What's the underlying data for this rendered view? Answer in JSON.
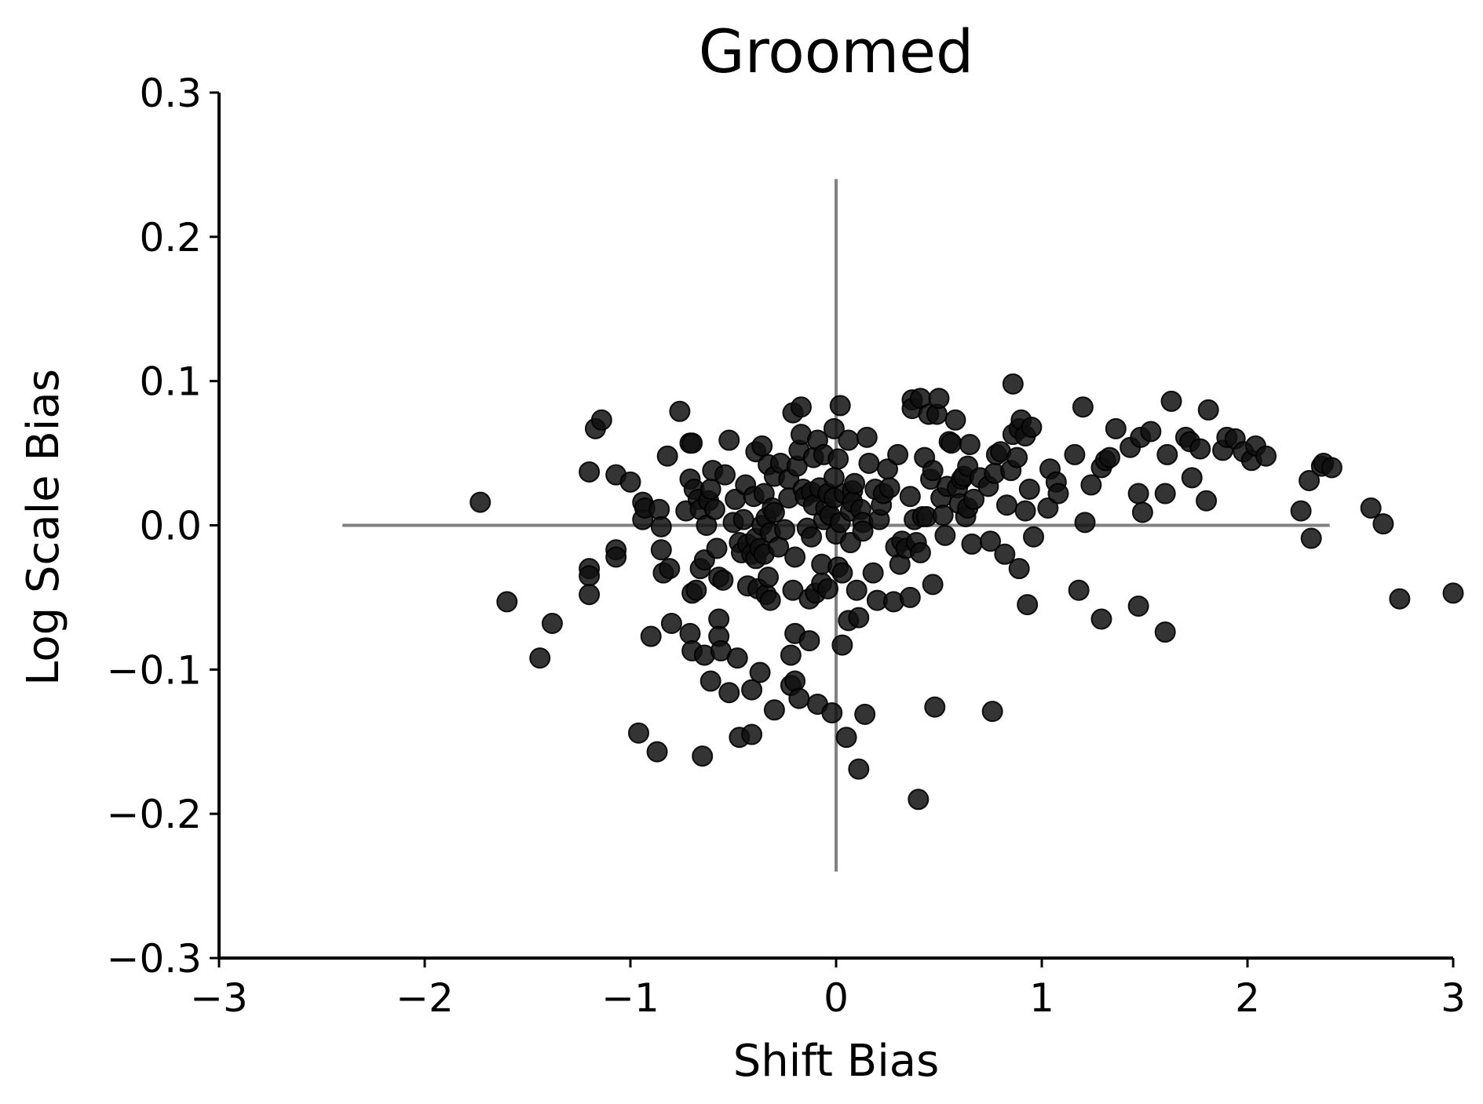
{
  "chart_data": {
    "type": "scatter",
    "title": "Groomed",
    "xlabel": "Shift Bias",
    "ylabel": "Log Scale Bias",
    "xlim": [
      -3,
      3
    ],
    "ylim": [
      -0.3,
      0.3
    ],
    "xticks": [
      -3,
      -2,
      -1,
      0,
      1,
      2,
      3
    ],
    "xtick_labels": [
      "−3",
      "−2",
      "−1",
      "0",
      "1",
      "2",
      "3"
    ],
    "yticks": [
      -0.3,
      -0.2,
      -0.1,
      0.0,
      0.1,
      0.2,
      0.3
    ],
    "ytick_labels": [
      "−0.3",
      "−0.2",
      "−0.1",
      "0.0",
      "0.1",
      "0.2",
      "0.3"
    ],
    "grid": false,
    "reference_lines": {
      "horizontal": {
        "y": 0,
        "x_range": [
          -2.4,
          2.4
        ],
        "color": "#808080"
      },
      "vertical": {
        "x": 0,
        "y_range": [
          -0.24,
          0.24
        ],
        "color": "#808080"
      }
    },
    "marker_color": "#111111",
    "points": [
      [
        -1.73,
        0.016
      ],
      [
        -1.6,
        -0.053
      ],
      [
        -1.44,
        -0.092
      ],
      [
        -1.38,
        -0.068
      ],
      [
        -1.2,
        -0.03
      ],
      [
        -1.2,
        -0.035
      ],
      [
        -1.2,
        -0.048
      ],
      [
        -1.2,
        0.037
      ],
      [
        -1.17,
        0.067
      ],
      [
        -1.14,
        0.073
      ],
      [
        -1.07,
        0.035
      ],
      [
        -1.07,
        -0.017
      ],
      [
        -1.07,
        -0.022
      ],
      [
        -1.0,
        0.03
      ],
      [
        -0.96,
        -0.144
      ],
      [
        -0.94,
        0.016
      ],
      [
        -0.94,
        0.004
      ],
      [
        -0.93,
        0.012
      ],
      [
        -0.9,
        -0.077
      ],
      [
        -0.87,
        -0.157
      ],
      [
        -0.86,
        0.011
      ],
      [
        -0.85,
        -0.001
      ],
      [
        -0.85,
        -0.017
      ],
      [
        -0.84,
        -0.033
      ],
      [
        -0.82,
        0.048
      ],
      [
        -0.81,
        -0.03
      ],
      [
        -0.8,
        -0.068
      ],
      [
        -0.76,
        0.079
      ],
      [
        -0.73,
        0.01
      ],
      [
        -0.71,
        0.057
      ],
      [
        -0.7,
        0.057
      ],
      [
        -0.71,
        0.032
      ],
      [
        -0.71,
        -0.075
      ],
      [
        -0.7,
        -0.047
      ],
      [
        -0.7,
        -0.087
      ],
      [
        -0.69,
        0.025
      ],
      [
        -0.68,
        -0.045
      ],
      [
        -0.67,
        0.018
      ],
      [
        -0.66,
        -0.03
      ],
      [
        -0.66,
        0.011
      ],
      [
        -0.65,
        -0.16
      ],
      [
        -0.64,
        -0.09
      ],
      [
        -0.64,
        -0.024
      ],
      [
        -0.63,
        0.0
      ],
      [
        -0.62,
        0.017
      ],
      [
        -0.61,
        0.025
      ],
      [
        -0.61,
        -0.108
      ],
      [
        -0.6,
        0.038
      ],
      [
        -0.59,
        0.011
      ],
      [
        -0.58,
        -0.016
      ],
      [
        -0.57,
        -0.036
      ],
      [
        -0.57,
        -0.065
      ],
      [
        -0.57,
        -0.077
      ],
      [
        -0.56,
        -0.087
      ],
      [
        -0.55,
        -0.038
      ],
      [
        -0.54,
        0.035
      ],
      [
        -0.52,
        0.059
      ],
      [
        -0.52,
        -0.116
      ],
      [
        -0.5,
        0.002
      ],
      [
        -0.49,
        0.018
      ],
      [
        -0.48,
        -0.092
      ],
      [
        -0.47,
        -0.012
      ],
      [
        -0.47,
        -0.147
      ],
      [
        -0.46,
        -0.019
      ],
      [
        -0.45,
        0.004
      ],
      [
        -0.44,
        0.028
      ],
      [
        -0.43,
        -0.013
      ],
      [
        -0.43,
        -0.042
      ],
      [
        -0.41,
        -0.02
      ],
      [
        -0.41,
        -0.145
      ],
      [
        -0.41,
        -0.114
      ],
      [
        -0.4,
        0.02
      ],
      [
        -0.39,
        0.051
      ],
      [
        -0.39,
        -0.023
      ],
      [
        -0.39,
        -0.009
      ],
      [
        -0.38,
        -0.044
      ],
      [
        -0.37,
        -0.016
      ],
      [
        -0.37,
        -0.102
      ],
      [
        -0.36,
        0.055
      ],
      [
        -0.36,
        0.0
      ],
      [
        -0.35,
        0.022
      ],
      [
        -0.35,
        -0.02
      ],
      [
        -0.34,
        0.005
      ],
      [
        -0.34,
        -0.048
      ],
      [
        -0.33,
        -0.036
      ],
      [
        -0.33,
        0.042
      ],
      [
        -0.32,
        -0.052
      ],
      [
        -0.32,
        -0.005
      ],
      [
        -0.31,
        0.012
      ],
      [
        -0.3,
        0.009
      ],
      [
        -0.3,
        -0.128
      ],
      [
        -0.3,
        0.034
      ],
      [
        -0.28,
        -0.015
      ],
      [
        -0.27,
        0.043
      ],
      [
        -0.25,
        -0.003
      ],
      [
        -0.23,
        0.032
      ],
      [
        -0.23,
        0.019
      ],
      [
        -0.22,
        -0.09
      ],
      [
        -0.22,
        -0.111
      ],
      [
        -0.21,
        0.078
      ],
      [
        -0.21,
        -0.045
      ],
      [
        -0.2,
        -0.022
      ],
      [
        -0.2,
        -0.075
      ],
      [
        -0.2,
        -0.108
      ],
      [
        -0.19,
        0.041
      ],
      [
        -0.18,
        0.052
      ],
      [
        -0.18,
        -0.12
      ],
      [
        -0.17,
        0.082
      ],
      [
        -0.17,
        0.063
      ],
      [
        -0.16,
        0.025
      ],
      [
        -0.15,
        0.02
      ],
      [
        -0.14,
        -0.002
      ],
      [
        -0.13,
        -0.08
      ],
      [
        -0.13,
        -0.051
      ],
      [
        -0.12,
        0.023
      ],
      [
        -0.12,
        -0.008
      ],
      [
        -0.11,
        0.047
      ],
      [
        -0.11,
        0.014
      ],
      [
        -0.1,
        -0.047
      ],
      [
        -0.09,
        -0.124
      ],
      [
        -0.09,
        0.059
      ],
      [
        -0.08,
        0.026
      ],
      [
        -0.07,
        -0.04
      ],
      [
        -0.07,
        -0.027
      ],
      [
        -0.06,
        0.004
      ],
      [
        -0.06,
        0.049
      ],
      [
        -0.05,
        0.012
      ],
      [
        -0.04,
        -0.044
      ],
      [
        -0.04,
        0.022
      ],
      [
        -0.03,
        0.007
      ],
      [
        -0.02,
        -0.13
      ],
      [
        -0.01,
        0.067
      ],
      [
        -0.01,
        0.033
      ],
      [
        -0.01,
        0.019
      ],
      [
        0.0,
        -0.006
      ],
      [
        0.01,
        0.046
      ],
      [
        0.01,
        -0.029
      ],
      [
        0.02,
        0.083
      ],
      [
        0.02,
        0.002
      ],
      [
        0.03,
        -0.083
      ],
      [
        0.03,
        -0.033
      ],
      [
        0.04,
        0.022
      ],
      [
        0.05,
        -0.147
      ],
      [
        0.06,
        0.059
      ],
      [
        0.06,
        -0.066
      ],
      [
        0.07,
        0.01
      ],
      [
        0.07,
        -0.012
      ],
      [
        0.08,
        0.024
      ],
      [
        0.08,
        0.016
      ],
      [
        0.09,
        0.029
      ],
      [
        0.1,
        -0.045
      ],
      [
        0.11,
        -0.169
      ],
      [
        0.11,
        -0.064
      ],
      [
        0.12,
        0.011
      ],
      [
        0.13,
        0.002
      ],
      [
        0.13,
        -0.004
      ],
      [
        0.14,
        -0.131
      ],
      [
        0.15,
        0.061
      ],
      [
        0.16,
        0.043
      ],
      [
        0.18,
        -0.033
      ],
      [
        0.19,
        0.025
      ],
      [
        0.2,
        -0.052
      ],
      [
        0.21,
        0.004
      ],
      [
        0.22,
        0.014
      ],
      [
        0.23,
        0.022
      ],
      [
        0.25,
        0.039
      ],
      [
        0.26,
        0.026
      ],
      [
        0.28,
        -0.053
      ],
      [
        0.29,
        -0.015
      ],
      [
        0.3,
        0.049
      ],
      [
        0.31,
        -0.027
      ],
      [
        0.32,
        -0.011
      ],
      [
        0.34,
        -0.016
      ],
      [
        0.36,
        0.02
      ],
      [
        0.36,
        -0.05
      ],
      [
        0.37,
        0.087
      ],
      [
        0.37,
        0.081
      ],
      [
        0.38,
        0.004
      ],
      [
        0.39,
        -0.012
      ],
      [
        0.4,
        -0.19
      ],
      [
        0.41,
        0.088
      ],
      [
        0.41,
        -0.019
      ],
      [
        0.42,
        0.006
      ],
      [
        0.43,
        0.047
      ],
      [
        0.44,
        0.006
      ],
      [
        0.45,
        0.077
      ],
      [
        0.46,
        0.032
      ],
      [
        0.47,
        0.038
      ],
      [
        0.47,
        -0.041
      ],
      [
        0.48,
        -0.126
      ],
      [
        0.49,
        0.077
      ],
      [
        0.5,
        0.088
      ],
      [
        0.51,
        0.019
      ],
      [
        0.52,
        0.007
      ],
      [
        0.53,
        -0.007
      ],
      [
        0.54,
        0.027
      ],
      [
        0.55,
        0.058
      ],
      [
        0.56,
        0.057
      ],
      [
        0.58,
        0.073
      ],
      [
        0.59,
        0.026
      ],
      [
        0.6,
        0.015
      ],
      [
        0.61,
        0.032
      ],
      [
        0.62,
        0.034
      ],
      [
        0.63,
        0.006
      ],
      [
        0.64,
        0.041
      ],
      [
        0.64,
        0.012
      ],
      [
        0.65,
        0.056
      ],
      [
        0.66,
        -0.013
      ],
      [
        0.67,
        0.018
      ],
      [
        0.7,
        0.033
      ],
      [
        0.74,
        0.027
      ],
      [
        0.75,
        -0.011
      ],
      [
        0.76,
        -0.129
      ],
      [
        0.77,
        0.036
      ],
      [
        0.78,
        0.049
      ],
      [
        0.8,
        0.051
      ],
      [
        0.82,
        -0.02
      ],
      [
        0.83,
        0.014
      ],
      [
        0.85,
        0.038
      ],
      [
        0.86,
        0.063
      ],
      [
        0.86,
        0.098
      ],
      [
        0.88,
        0.047
      ],
      [
        0.89,
        -0.03
      ],
      [
        0.89,
        0.067
      ],
      [
        0.9,
        0.073
      ],
      [
        0.92,
        0.01
      ],
      [
        0.92,
        0.062
      ],
      [
        0.93,
        -0.055
      ],
      [
        0.94,
        0.025
      ],
      [
        0.95,
        0.068
      ],
      [
        0.96,
        -0.008
      ],
      [
        1.03,
        0.012
      ],
      [
        1.04,
        0.039
      ],
      [
        1.07,
        0.03
      ],
      [
        1.08,
        0.022
      ],
      [
        1.16,
        0.049
      ],
      [
        1.18,
        -0.045
      ],
      [
        1.2,
        0.082
      ],
      [
        1.21,
        0.002
      ],
      [
        1.24,
        0.028
      ],
      [
        1.29,
        0.04
      ],
      [
        1.29,
        -0.065
      ],
      [
        1.31,
        0.045
      ],
      [
        1.33,
        0.047
      ],
      [
        1.36,
        0.067
      ],
      [
        1.43,
        0.054
      ],
      [
        1.47,
        0.022
      ],
      [
        1.47,
        -0.056
      ],
      [
        1.48,
        0.061
      ],
      [
        1.49,
        0.009
      ],
      [
        1.53,
        0.065
      ],
      [
        1.6,
        0.022
      ],
      [
        1.6,
        -0.074
      ],
      [
        1.61,
        0.049
      ],
      [
        1.63,
        0.086
      ],
      [
        1.7,
        0.061
      ],
      [
        1.72,
        0.058
      ],
      [
        1.73,
        0.033
      ],
      [
        1.77,
        0.053
      ],
      [
        1.8,
        0.017
      ],
      [
        1.81,
        0.08
      ],
      [
        1.88,
        0.052
      ],
      [
        1.9,
        0.061
      ],
      [
        1.94,
        0.06
      ],
      [
        1.98,
        0.051
      ],
      [
        2.02,
        0.045
      ],
      [
        2.04,
        0.055
      ],
      [
        2.09,
        0.048
      ],
      [
        2.26,
        0.01
      ],
      [
        2.3,
        0.031
      ],
      [
        2.31,
        -0.009
      ],
      [
        2.36,
        0.041
      ],
      [
        2.37,
        0.043
      ],
      [
        2.41,
        0.04
      ],
      [
        2.6,
        0.012
      ],
      [
        2.66,
        0.001
      ],
      [
        2.74,
        -0.051
      ],
      [
        3.0,
        -0.047
      ]
    ]
  }
}
